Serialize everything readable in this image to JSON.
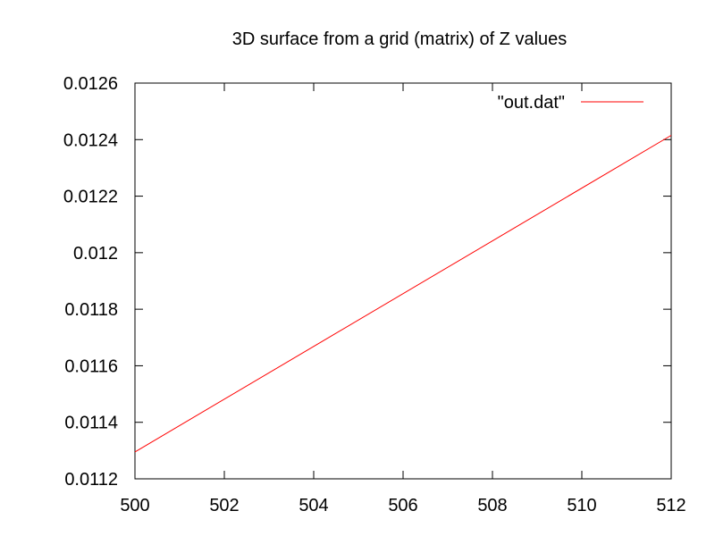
{
  "chart_data": {
    "type": "line",
    "title": "3D surface from a grid (matrix) of Z values",
    "xlabel": "",
    "ylabel": "",
    "xlim": [
      500,
      512
    ],
    "ylim": [
      0.0112,
      0.0126
    ],
    "x_ticks": [
      500,
      502,
      504,
      506,
      508,
      510,
      512
    ],
    "x_tick_labels": [
      "500",
      "502",
      "504",
      "506",
      "508",
      "510",
      "512"
    ],
    "y_ticks": [
      0.0112,
      0.0114,
      0.0116,
      0.0118,
      0.012,
      0.0122,
      0.0124,
      0.0126
    ],
    "y_tick_labels": [
      "0.0112",
      "0.0114",
      "0.0116",
      "0.0118",
      "0.012",
      "0.0122",
      "0.0124",
      "0.0126"
    ],
    "grid": false,
    "legend_position": "top-right",
    "series": [
      {
        "name": "\"out.dat\"",
        "color": "#ff0000",
        "x": [
          500,
          512
        ],
        "y": [
          0.011295,
          0.012415
        ]
      }
    ]
  }
}
